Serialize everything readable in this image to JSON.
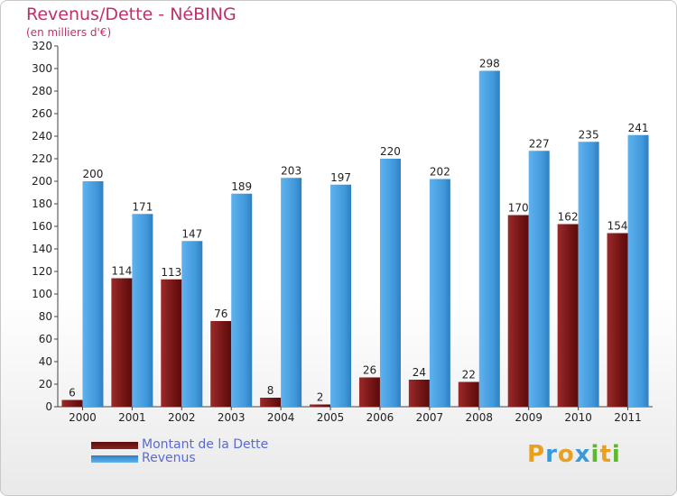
{
  "header": {
    "title": "Revenus/Dette - NéBING",
    "subtitle": "(en milliers d'€)"
  },
  "logo": {
    "letters": [
      "P",
      "r",
      "o",
      "x",
      "i",
      "t",
      "i"
    ],
    "colors": [
      "#e8a020",
      "#3a9ad9",
      "#e8a020",
      "#3a9ad9",
      "#5cb82e",
      "#e8a020",
      "#5cb82e"
    ]
  },
  "chart_data": {
    "type": "bar",
    "categories": [
      "2000",
      "2001",
      "2002",
      "2003",
      "2004",
      "2005",
      "2006",
      "2007",
      "2008",
      "2009",
      "2010",
      "2011"
    ],
    "series": [
      {
        "name": "Montant de la Dette",
        "color": "#7a1a1a",
        "values": [
          6,
          114,
          113,
          76,
          8,
          2,
          26,
          24,
          22,
          170,
          162,
          154
        ]
      },
      {
        "name": "Revenus",
        "color": "#4da6e8",
        "values": [
          200,
          171,
          147,
          189,
          203,
          197,
          220,
          202,
          298,
          227,
          235,
          241
        ]
      }
    ],
    "ylim": [
      0,
      320
    ],
    "yticks": [
      0,
      20,
      40,
      60,
      80,
      100,
      120,
      140,
      160,
      180,
      200,
      220,
      240,
      260,
      280,
      300,
      320
    ],
    "grid": false,
    "legend": "bottom-left",
    "title": "Revenus/Dette - NéBING",
    "ylabel": "(en milliers d'€)"
  }
}
